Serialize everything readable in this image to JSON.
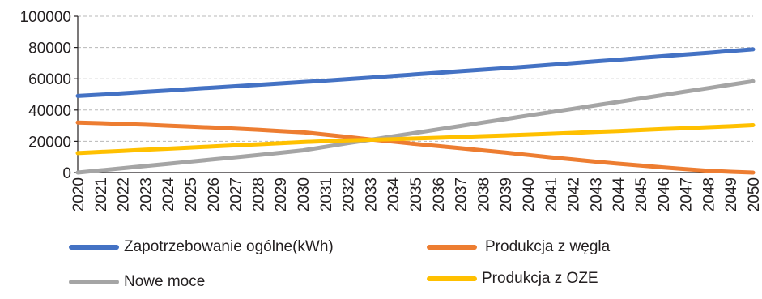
{
  "chart_data": {
    "type": "line",
    "title": "",
    "xlabel": "",
    "ylabel": "",
    "x": [
      "2020",
      "2021",
      "2022",
      "2023",
      "2024",
      "2025",
      "2026",
      "2027",
      "2028",
      "2029",
      "2030",
      "2031",
      "2032",
      "2033",
      "2034",
      "2035",
      "2036",
      "2037",
      "2038",
      "2039",
      "2040",
      "2041",
      "2042",
      "2043",
      "2044",
      "2045",
      "2046",
      "2047",
      "2048",
      "2049",
      "2050"
    ],
    "ylim": [
      0,
      100000
    ],
    "yticks": [
      "0",
      "20000",
      "40000",
      "60000",
      "80000",
      "100000"
    ],
    "grid": true,
    "legend_position": "bottom",
    "series": [
      {
        "name": "Zapotrzebowanie ogólne(kWh)",
        "color": "#4472c4",
        "values": [
          49000,
          49800,
          50700,
          51600,
          52500,
          53400,
          54300,
          55200,
          56100,
          57000,
          57900,
          58800,
          59800,
          60800,
          61800,
          62800,
          63800,
          64800,
          65800,
          66800,
          67800,
          68900,
          70000,
          71100,
          72200,
          73300,
          74400,
          75500,
          76600,
          77700,
          78800
        ]
      },
      {
        "name": "Produkcja z węgla",
        "color": "#ed7d31",
        "values": [
          32000,
          31600,
          31100,
          30600,
          30000,
          29400,
          28800,
          28100,
          27400,
          26600,
          25800,
          24300,
          22800,
          21200,
          19800,
          18300,
          17000,
          15600,
          14200,
          12800,
          11300,
          9800,
          8400,
          7000,
          5700,
          4500,
          3300,
          2200,
          1200,
          500,
          0
        ]
      },
      {
        "name": "Nowe moce",
        "color": "#a5a5a5",
        "values": [
          0,
          1400,
          2800,
          4200,
          5600,
          7000,
          8400,
          9800,
          11200,
          12700,
          14200,
          16500,
          18800,
          21000,
          23200,
          25400,
          27600,
          29800,
          32000,
          34200,
          36400,
          38600,
          40800,
          43000,
          45200,
          47400,
          49600,
          51800,
          54000,
          56200,
          58400
        ]
      },
      {
        "name": "Produkcja z OZE",
        "color": "#ffc000",
        "values": [
          12500,
          13200,
          13900,
          14600,
          15300,
          16000,
          16700,
          17400,
          18100,
          18800,
          19500,
          20100,
          20600,
          21000,
          21400,
          21800,
          22300,
          22800,
          23300,
          23800,
          24300,
          24800,
          25400,
          26000,
          26600,
          27200,
          27800,
          28400,
          29000,
          29600,
          30300
        ]
      }
    ]
  }
}
